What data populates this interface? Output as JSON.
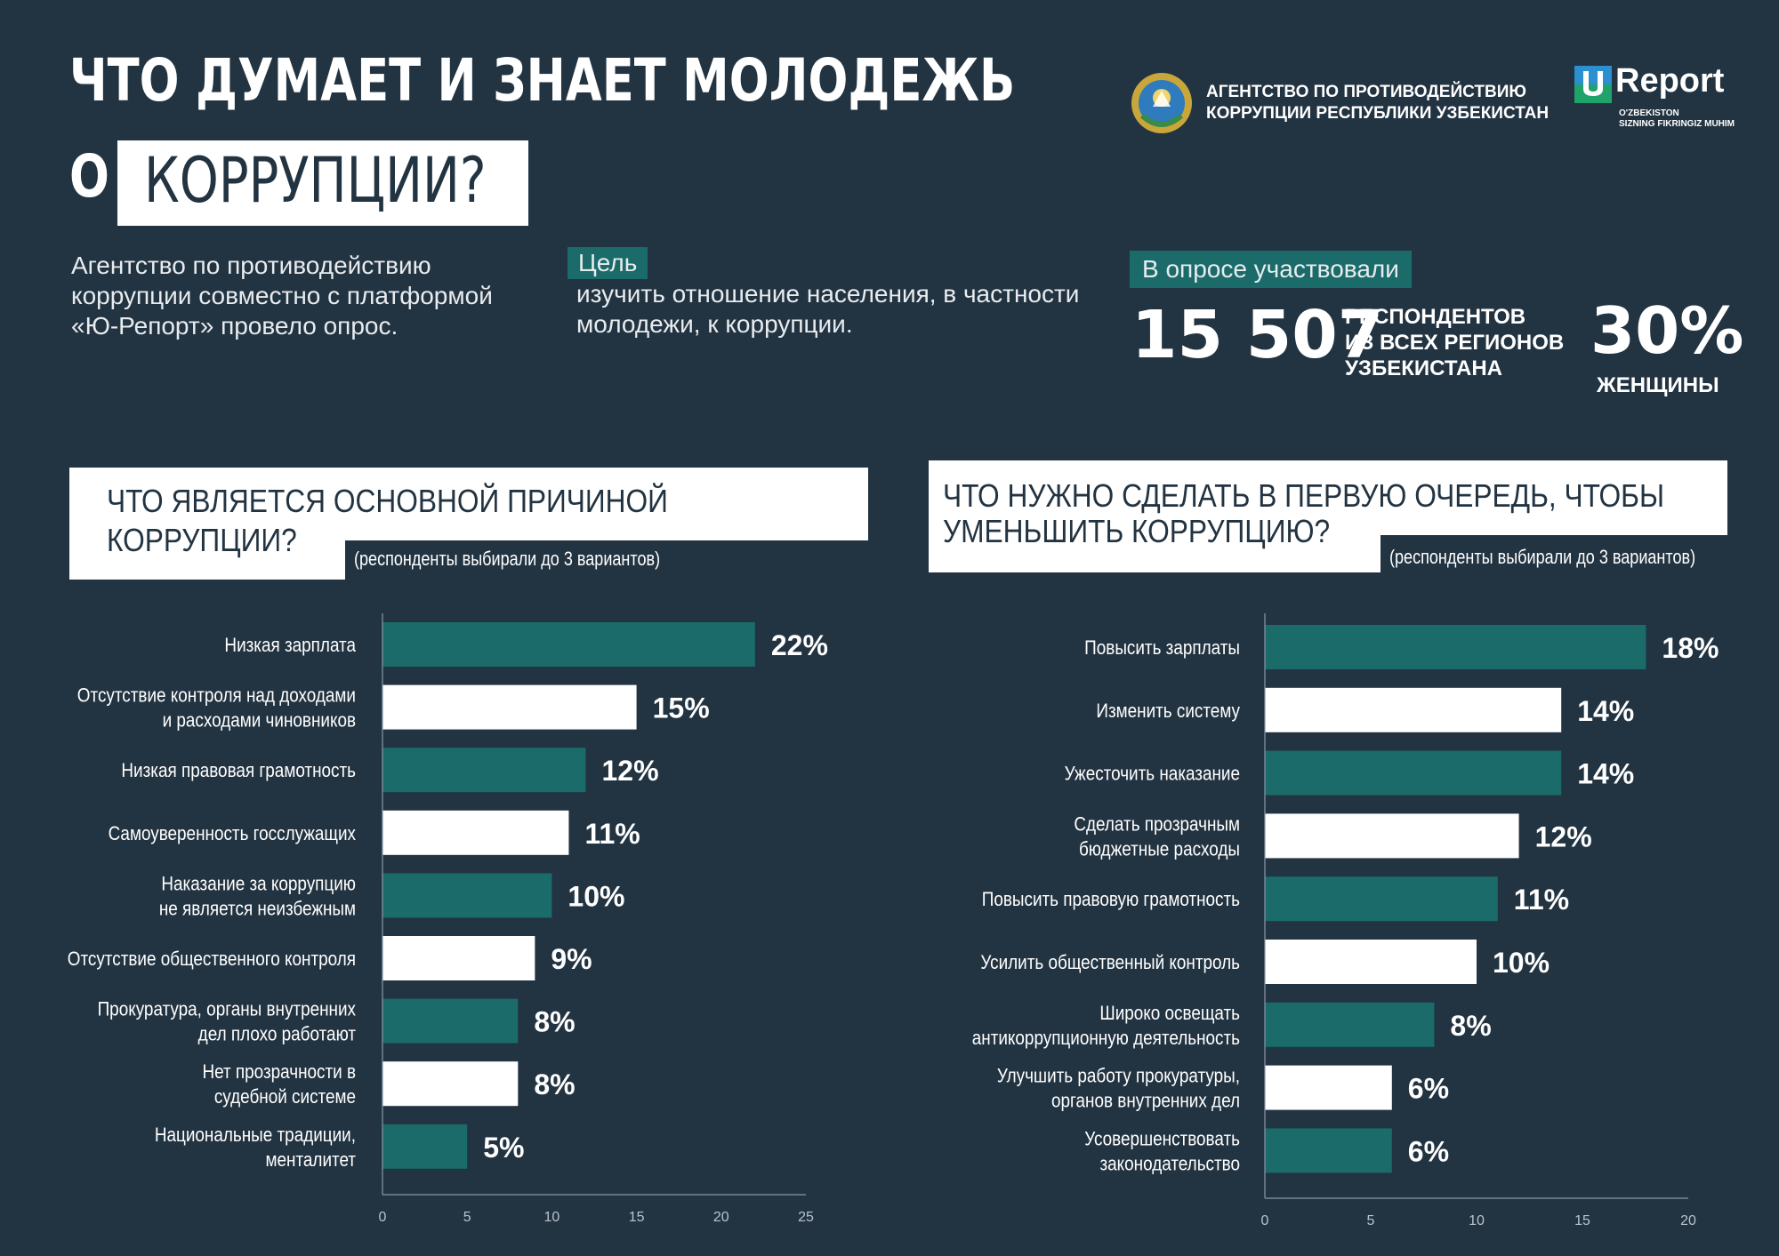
{
  "header": {
    "title_line1": "ЧТО ДУМАЕТ И ЗНАЕТ МОЛОДЕЖЬ",
    "title_o": "О",
    "title_highlight": "КОРРУПЦИИ?"
  },
  "agency": {
    "name_line1": "АГЕНТСТВО ПО ПРОТИВОДЕЙСТВИЮ",
    "name_line2": "КОРРУПЦИИ РЕСПУБЛИКИ УЗБЕКИСТАН",
    "emblem_icon": "state-emblem-icon"
  },
  "ureport": {
    "word": "Report",
    "tagline_line1": "O'ZBEKISTON",
    "tagline_line2": "SIZNING FIKRINGIZ MUHIM",
    "icon": "u-report-logo-icon"
  },
  "intro": {
    "text": "Агентство по противодействию коррупции совместно с платформой «Ю-Репорт» провело опрос."
  },
  "goal": {
    "label": "Цель",
    "text": "изучить отношение населения, в частности молодежи, к коррупции."
  },
  "survey": {
    "label": "В опросе участвовали",
    "count": "15 507",
    "count_desc_line1": "РЕСПОНДЕНТОВ",
    "count_desc_line2": "ИЗ ВСЕХ РЕГИОНОВ",
    "count_desc_line3": "УЗБЕКИСТАНА",
    "women_pct": "30%",
    "women_label": "ЖЕНЩИНЫ"
  },
  "colors": {
    "background": "#223341",
    "teal": "#1a6b6a",
    "white": "#ffffff"
  },
  "chart_data": [
    {
      "type": "bar",
      "orientation": "horizontal",
      "title_line1": "ЧТО ЯВЛЯЕТСЯ ОСНОВНОЙ ПРИЧИНОЙ",
      "title_line2": "КОРРУПЦИИ?",
      "note": "(респонденты выбирали до 3 вариантов)",
      "categories": [
        [
          "Низкая зарплата"
        ],
        [
          "Отсутствие контроля над доходами",
          "и расходами чиновников"
        ],
        [
          "Низкая правовая грамотность"
        ],
        [
          "Самоуверенность госслужащих"
        ],
        [
          "Наказание за коррупцию",
          "не является неизбежным"
        ],
        [
          "Отсутствие общественного контроля"
        ],
        [
          "Прокуратура, органы внутренних",
          "дел плохо работают"
        ],
        [
          "Нет прозрачности в",
          "судебной системе"
        ],
        [
          "Национальные традиции,",
          "менталитет"
        ]
      ],
      "values": [
        22,
        15,
        12,
        11,
        10,
        9,
        8,
        8,
        5
      ],
      "value_labels": [
        "22%",
        "15%",
        "12%",
        "11%",
        "10%",
        "9%",
        "8%",
        "8%",
        "5%"
      ],
      "bar_colors": [
        "teal",
        "white",
        "teal",
        "white",
        "teal",
        "white",
        "teal",
        "white",
        "teal"
      ],
      "xlim": [
        0,
        25
      ],
      "xticks": [
        0,
        5,
        10,
        15,
        20,
        25
      ],
      "grid": false
    },
    {
      "type": "bar",
      "orientation": "horizontal",
      "title_line1": "ЧТО НУЖНО СДЕЛАТЬ В ПЕРВУЮ ОЧЕРЕДЬ, ЧТОБЫ",
      "title_line2": "УМЕНЬШИТЬ КОРРУПЦИЮ?",
      "note": "(респонденты выбирали до 3 вариантов)",
      "categories": [
        [
          "Повысить зарплаты"
        ],
        [
          "Изменить систему"
        ],
        [
          "Ужесточить наказание"
        ],
        [
          "Сделать прозрачным",
          "бюджетные расходы"
        ],
        [
          "Повысить правовую грамотность"
        ],
        [
          "Усилить общественный контроль"
        ],
        [
          "Широко освещать",
          "антикоррупционную деятельность"
        ],
        [
          "Улучшить работу прокуратуры,",
          "органов внутренних дел"
        ],
        [
          "Усовершенствовать",
          "законодательство"
        ]
      ],
      "values": [
        18,
        14,
        14,
        12,
        11,
        10,
        8,
        6,
        6
      ],
      "value_labels": [
        "18%",
        "14%",
        "14%",
        "12%",
        "11%",
        "10%",
        "8%",
        "6%",
        "6%"
      ],
      "bar_colors": [
        "teal",
        "white",
        "teal",
        "white",
        "teal",
        "white",
        "teal",
        "white",
        "teal"
      ],
      "xlim": [
        0,
        20
      ],
      "xticks": [
        0,
        5,
        10,
        15,
        20
      ],
      "grid": false
    }
  ]
}
